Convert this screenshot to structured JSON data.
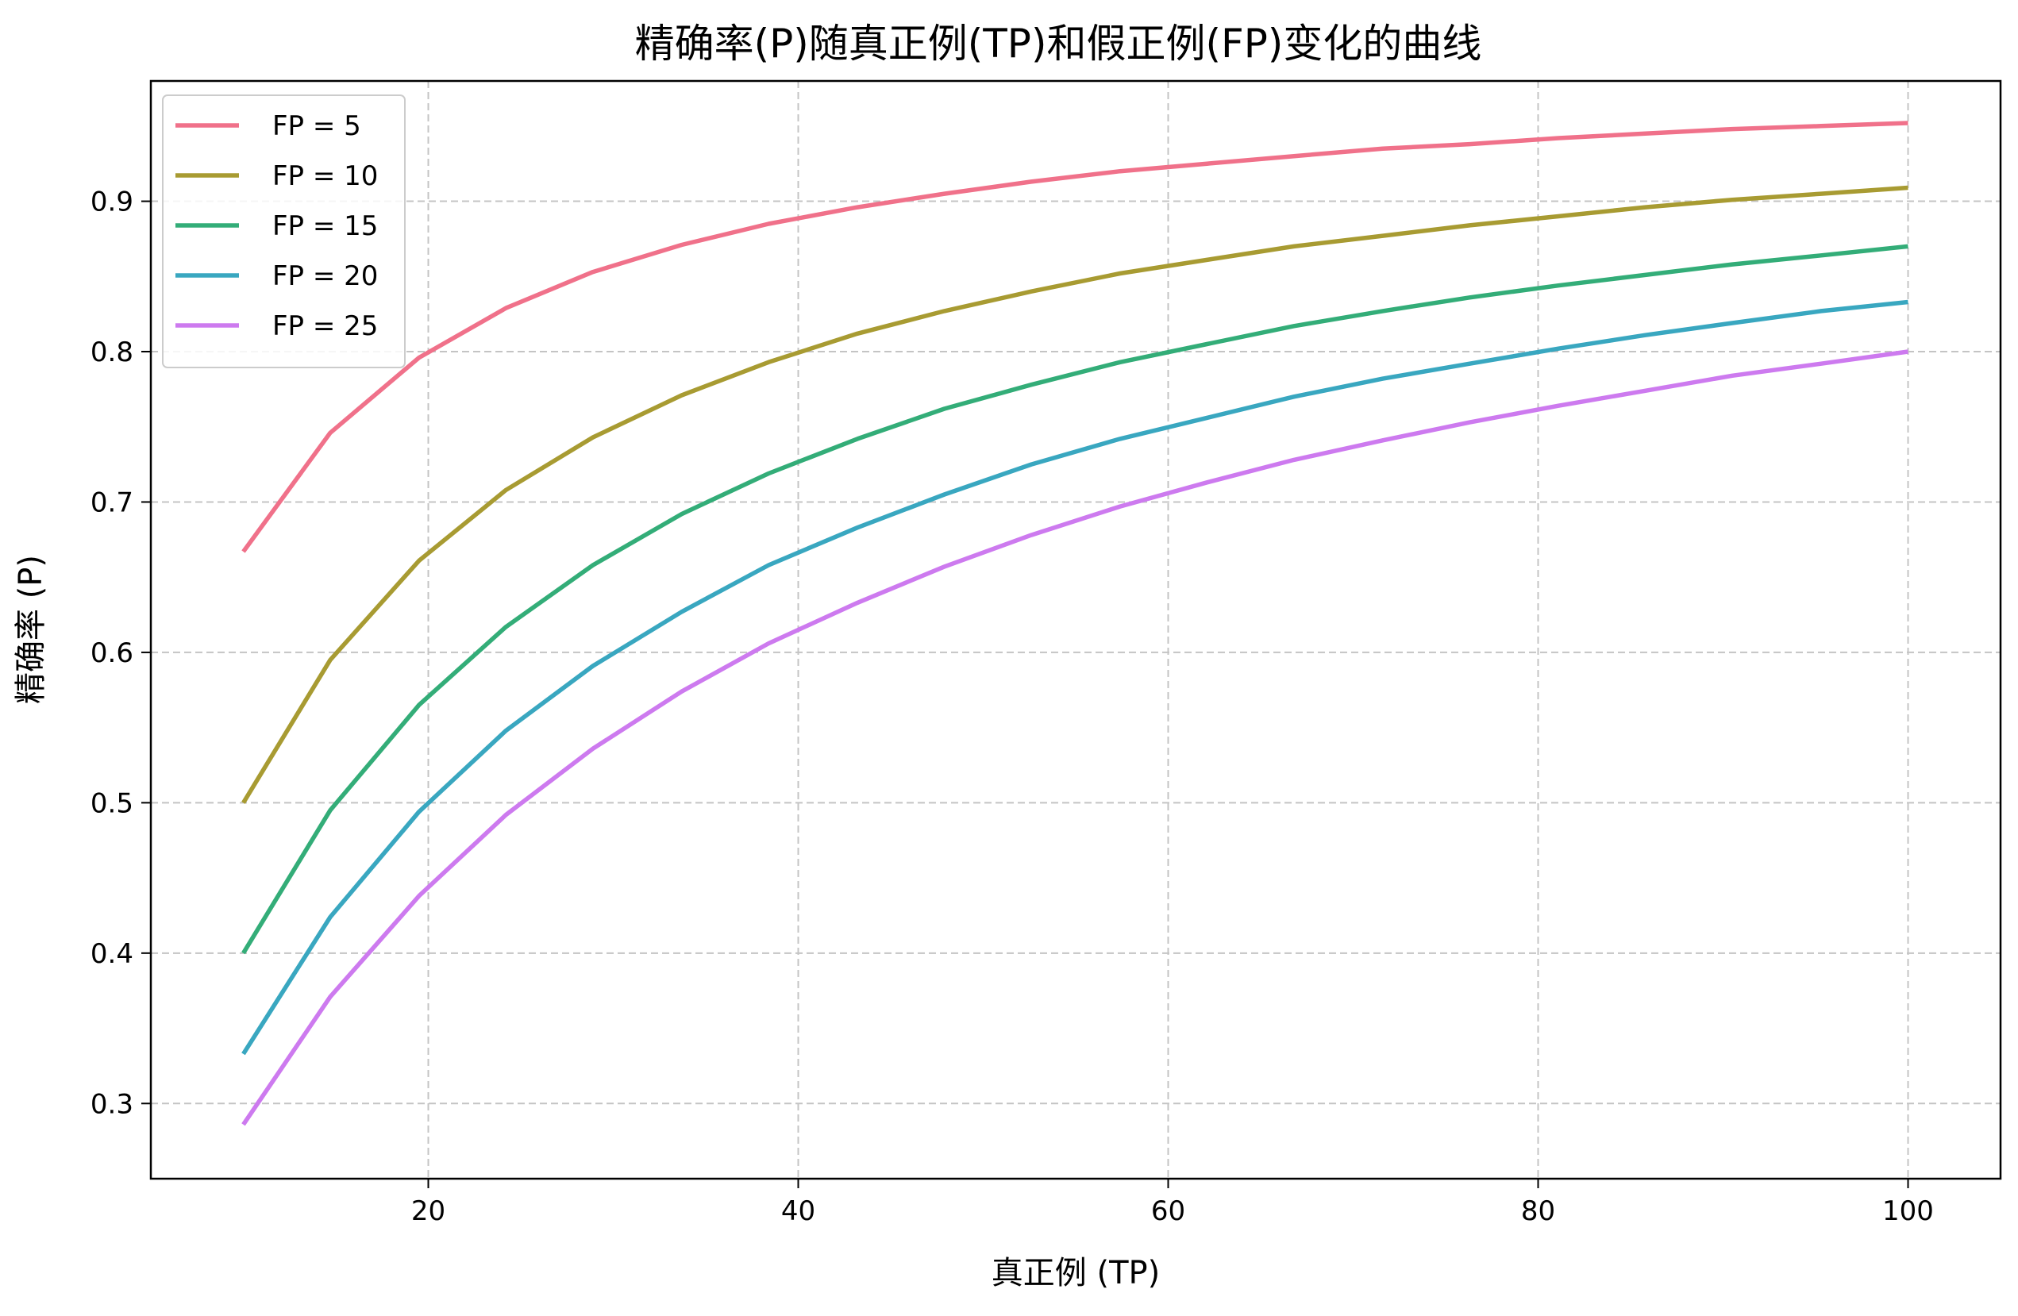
{
  "chart_data": {
    "type": "line",
    "title": "精确率(P)随真正例(TP)和假正例(FP)变化的曲线",
    "xlabel": "真正例 (TP)",
    "ylabel": "精确率 (P)",
    "xlim": [
      5,
      105
    ],
    "ylim": [
      0.25,
      0.98
    ],
    "xticks": [
      20,
      40,
      60,
      80,
      100
    ],
    "yticks": [
      0.3,
      0.4,
      0.5,
      0.6,
      0.7,
      0.8,
      0.9
    ],
    "xtick_labels": [
      "20",
      "40",
      "60",
      "80",
      "100"
    ],
    "ytick_labels": [
      "0.3",
      "0.4",
      "0.5",
      "0.6",
      "0.7",
      "0.8",
      "0.9"
    ],
    "grid": true,
    "legend_position": "top-left",
    "x": [
      10,
      14.7,
      19.5,
      24.2,
      28.9,
      33.7,
      38.4,
      43.2,
      47.9,
      52.6,
      57.4,
      62.1,
      66.8,
      71.6,
      76.3,
      81.1,
      85.8,
      90.5,
      95.3,
      100
    ],
    "series": [
      {
        "name": "FP = 5",
        "color": "#f0718a",
        "values": [
          0.667,
          0.746,
          0.796,
          0.829,
          0.853,
          0.871,
          0.885,
          0.896,
          0.905,
          0.913,
          0.92,
          0.925,
          0.93,
          0.935,
          0.938,
          0.942,
          0.945,
          0.948,
          0.95,
          0.952
        ]
      },
      {
        "name": "FP = 10",
        "color": "#a89b32",
        "values": [
          0.5,
          0.595,
          0.661,
          0.708,
          0.743,
          0.771,
          0.793,
          0.812,
          0.827,
          0.84,
          0.852,
          0.861,
          0.87,
          0.877,
          0.884,
          0.89,
          0.896,
          0.901,
          0.905,
          0.909
        ]
      },
      {
        "name": "FP = 15",
        "color": "#33ad78",
        "values": [
          0.4,
          0.495,
          0.565,
          0.617,
          0.658,
          0.692,
          0.719,
          0.742,
          0.762,
          0.778,
          0.793,
          0.805,
          0.817,
          0.827,
          0.836,
          0.844,
          0.851,
          0.858,
          0.864,
          0.87
        ]
      },
      {
        "name": "FP = 20",
        "color": "#39a7c0",
        "values": [
          0.333,
          0.424,
          0.494,
          0.548,
          0.591,
          0.627,
          0.658,
          0.683,
          0.705,
          0.725,
          0.742,
          0.756,
          0.77,
          0.782,
          0.792,
          0.802,
          0.811,
          0.819,
          0.827,
          0.833
        ]
      },
      {
        "name": "FP = 25",
        "color": "#cd7aef",
        "values": [
          0.286,
          0.371,
          0.438,
          0.492,
          0.536,
          0.574,
          0.606,
          0.633,
          0.657,
          0.678,
          0.697,
          0.713,
          0.728,
          0.741,
          0.753,
          0.764,
          0.774,
          0.784,
          0.792,
          0.8
        ]
      }
    ]
  }
}
